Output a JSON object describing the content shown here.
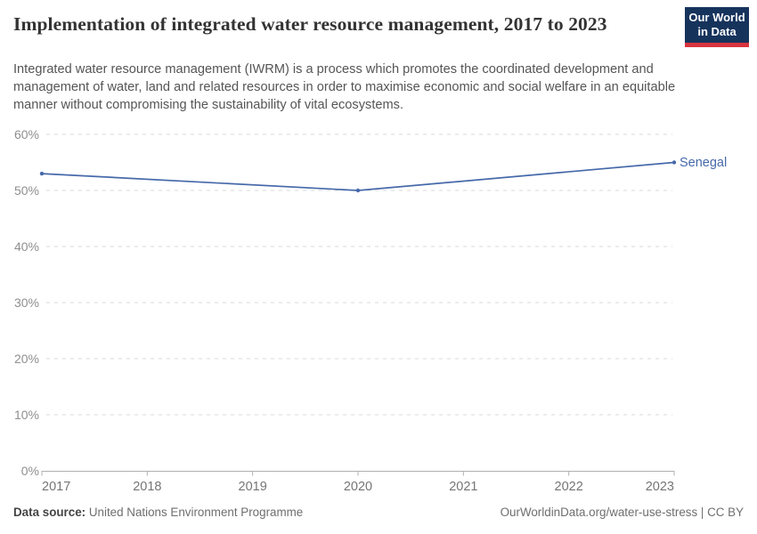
{
  "header": {
    "title": "Implementation of integrated water resource management, 2017 to 2023",
    "subtitle": "Integrated water resource management (IWRM) is a process which promotes the coordinated development and management of water, land and related resources in order to maximise economic and social welfare in an equitable manner without compromising the sustainability of vital ecosystems.",
    "logo": {
      "line1": "Our World",
      "line2": "in Data",
      "bg_color": "#16335c",
      "accent_color": "#d7353f"
    }
  },
  "chart_data": {
    "type": "line",
    "title": "Implementation of integrated water resource management, 2017 to 2023",
    "x": {
      "ticks": [
        2017,
        2018,
        2019,
        2020,
        2021,
        2022,
        2023
      ],
      "min": 2017,
      "max": 2023
    },
    "y": {
      "ticks": [
        0,
        10,
        20,
        30,
        40,
        50,
        60
      ],
      "min": 0,
      "max": 60,
      "tick_suffix": "%"
    },
    "grid": {
      "horizontal": true,
      "style": "dashed",
      "color": "#dadada"
    },
    "axis_color": "#b0b0b0",
    "y_label_color": "#8f8f8f",
    "x_label_color": "#757575",
    "legend_position": "end-of-line",
    "series": [
      {
        "name": "Senegal",
        "color": "#4669aa",
        "x": [
          2017,
          2020,
          2023
        ],
        "values": [
          53,
          50,
          55
        ]
      }
    ]
  },
  "footer": {
    "source_label": "Data source:",
    "source_value": " United Nations Environment Programme",
    "credit": "OurWorldinData.org/water-use-stress | CC BY"
  }
}
